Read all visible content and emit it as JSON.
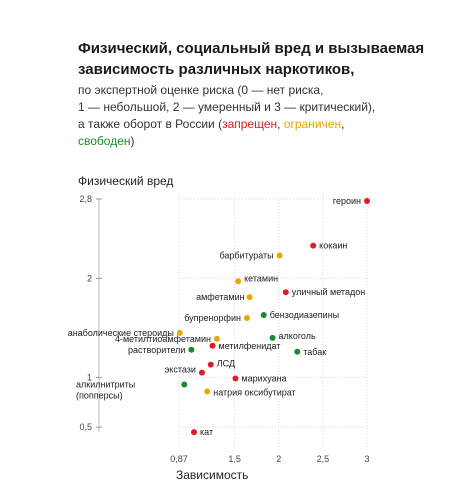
{
  "header": {
    "title": "Физический, социальный вред и вызываемая зависимость различных наркотиков,",
    "subtitle_lines": [
      "по экспертной оценке риска (0 — нет риска,",
      "1 — небольшой, 2 — умеренный и 3 — критический),",
      "а также оборот в России ("
    ],
    "legend": {
      "banned": "запрещен",
      "restricted": "ограничен",
      "free": "свободен",
      "sep": ", ",
      "close": ")"
    }
  },
  "colors": {
    "banned": "#e11b22",
    "restricted": "#e9a800",
    "free": "#1a8a2e"
  },
  "chart_data": {
    "type": "scatter",
    "xlabel": "Зависимость",
    "ylabel": "Физический вред",
    "xlim": [
      0.87,
      3.0
    ],
    "ylim": [
      0.5,
      2.8
    ],
    "xticks": [
      "0,87",
      "1,5",
      "2",
      "2,5",
      "3"
    ],
    "xtick_values": [
      0.87,
      1.5,
      2.0,
      2.5,
      3.0
    ],
    "yticks": [
      "0,5",
      "1",
      "2",
      "2,8"
    ],
    "ytick_values": [
      0.5,
      1.0,
      2.0,
      2.8
    ],
    "points": [
      {
        "name": "героин",
        "x": 3.0,
        "y": 2.78,
        "status": "banned"
      },
      {
        "name": "кокаин",
        "x": 2.39,
        "y": 2.33,
        "status": "banned"
      },
      {
        "name": "барбитураты",
        "x": 2.01,
        "y": 2.23,
        "status": "restricted"
      },
      {
        "name": "кетамин",
        "x": 1.54,
        "y": 1.97,
        "status": "restricted"
      },
      {
        "name": "уличный метадон",
        "x": 2.08,
        "y": 1.86,
        "status": "banned"
      },
      {
        "name": "амфетамин",
        "x": 1.67,
        "y": 1.81,
        "status": "restricted"
      },
      {
        "name": "бензодиазепины",
        "x": 1.83,
        "y": 1.63,
        "status": "free"
      },
      {
        "name": "бупренорфин",
        "x": 1.64,
        "y": 1.6,
        "status": "restricted"
      },
      {
        "name": "анаболические стероиды",
        "x": 0.88,
        "y": 1.45,
        "status": "restricted"
      },
      {
        "name": "алкоголь",
        "x": 1.93,
        "y": 1.4,
        "status": "free"
      },
      {
        "name": "4-метилтиоамфетамин",
        "x": 1.3,
        "y": 1.39,
        "status": "restricted"
      },
      {
        "name": "метилфенидат",
        "x": 1.25,
        "y": 1.32,
        "status": "banned"
      },
      {
        "name": "табак",
        "x": 2.21,
        "y": 1.26,
        "status": "free"
      },
      {
        "name": "растворители",
        "x": 1.01,
        "y": 1.28,
        "status": "free"
      },
      {
        "name": "ЛСД",
        "x": 1.23,
        "y": 1.13,
        "status": "banned"
      },
      {
        "name": "экстази",
        "x": 1.13,
        "y": 1.05,
        "status": "banned"
      },
      {
        "name": "марихуана",
        "x": 1.51,
        "y": 0.99,
        "status": "banned"
      },
      {
        "name": "алкилнитриты (попперсы)",
        "x": 0.93,
        "y": 0.93,
        "status": "free"
      },
      {
        "name": "натрия оксибутират",
        "x": 1.19,
        "y": 0.86,
        "status": "restricted"
      },
      {
        "name": "кат",
        "x": 1.04,
        "y": 0.45,
        "status": "banned"
      }
    ]
  }
}
